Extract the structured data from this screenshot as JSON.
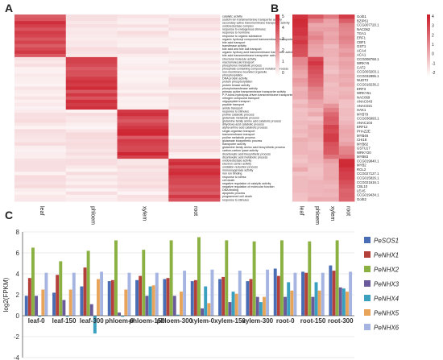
{
  "colors": {
    "heat_high": "#cc1f2c",
    "heat_low": "#ffffff",
    "series": [
      "#4a6eb5",
      "#b3403a",
      "#8bb143",
      "#6b5a9a",
      "#3aa0c0",
      "#e8a55a",
      "#a5b4e0"
    ]
  },
  "panel_a": {
    "letter": "A",
    "columns": [
      "leaf",
      "phloem",
      "xylem",
      "root"
    ],
    "scale_ticks": [
      "5",
      "4",
      "3",
      "2",
      "1",
      "0"
    ],
    "terms": [
      "catalytic activity",
      "sodium ion transmembrane transporter activity",
      "secondary active transmembrane transporter activity",
      "oxidoreductase complex",
      "response to endogenous stimulus",
      "response to hormone",
      "response to organic substance",
      "organic hydroxyl compound transmembrane transporter activity",
      "bile acid transport",
      "transferase activity",
      "bile acid and bile salt transport",
      "organic hydroxy acid transmembrane transporter activity",
      "bile acid transmembrane transporter activity",
      "structural molecule activity",
      "macromolecule transport",
      "phosphorus metabolic process",
      "phosphate-containing compound metabolic process",
      "non-membrane-bounded organelle",
      "phosphorylation",
      "DNA protein activity",
      "protein phosphorylation",
      "protein kinase activity",
      "phosphotransferase activity",
      "primary active transmembrane transporter activity",
      "P-P-bond-hydrolysis-driven transmembrane transporter activity",
      "nitrogen compound transport",
      "oligopeptide transport",
      "peptide transport",
      "amide transport",
      "response to stimulus",
      "proline catabolic process",
      "glutamate metabolic process",
      "glutamine family amino acid catabolic process",
      "dihydroxy acid catabolic process",
      "alpha-amino acid catabolic process",
      "single-organism transport",
      "transmembrane transport",
      "proline metabolic process",
      "glutamate biosynthetic process",
      "transporter activity",
      "glutamine family amino acid biosynthetic process",
      "carbon-carbon lyase activity",
      "dicarboxylic acid biosynthetic process",
      "dicarboxylic acid metabolic process",
      "oxidoreductase activity",
      "electron carrier activity",
      "oxidation-reduction process",
      "monooxygenase activity",
      "iron ion binding",
      "response to stress",
      "cell death",
      "negative regulation of catalytic activity",
      "negative regulation of molecular function",
      "DNA binding",
      "apoptotic process",
      "programmed cell death",
      "response to stimulus"
    ]
  },
  "panel_b": {
    "letter": "B",
    "columns": [
      "leaf",
      "phloem",
      "xylem",
      "root"
    ],
    "scale_ticks": [
      "4",
      "3",
      "2",
      "1",
      "0",
      "-1",
      "-2"
    ],
    "genes": [
      "GolS1",
      "BZIP61",
      "CCG007720.1",
      "NAC062",
      "TGA1",
      "ERF1",
      "CBF1",
      "GST1",
      "ACA4",
      "ACA1",
      "CCG008768.1",
      "WRKY6",
      "CAT2",
      "CCG003203.1",
      "CCG032895.1",
      "NUDT2",
      "CCG018236.2",
      "ERF3",
      "WRKY51",
      "NAC069",
      "ANAC043",
      "ANAC021",
      "HAK1",
      "MYB79",
      "CCG036993.1",
      "ANAC104",
      "ERF12",
      "PHAZ2E",
      "MYB46",
      "CHI18",
      "MYB82",
      "GSTU17",
      "WRKY20",
      "MYB83",
      "CCG019840.1",
      "MYB2",
      "RGL2",
      "CCG027127.1",
      "CCG015826.1",
      "CCG021616.1",
      "CBL10",
      "LEA5",
      "CCG019434.1",
      "GolS2"
    ]
  },
  "chart_data": [
    {
      "type": "heatmap",
      "panel": "A",
      "columns": [
        "leaf",
        "phloem",
        "xylem",
        "root"
      ],
      "value_range": [
        0,
        5
      ],
      "blocks": [
        {
          "column": "leaf",
          "rows": "catalytic activity through bile acid transmembrane transporter activity",
          "level": "high"
        },
        {
          "column": "phloem",
          "rows": "structural molecule activity through peptide transport",
          "level": "high"
        },
        {
          "column": "xylem",
          "rows": "response to stimulus through dicarboxylic acid metabolic process",
          "level": "high"
        },
        {
          "column": "root",
          "rows": "oxidoreductase activity through response to stimulus",
          "level": "high"
        }
      ]
    },
    {
      "type": "heatmap",
      "panel": "B",
      "columns": [
        "leaf",
        "phloem",
        "xylem",
        "root"
      ],
      "value_range": [
        -2,
        4
      ],
      "rows": [
        "GolS1",
        "BZIP61",
        "CCG007720.1",
        "NAC062",
        "TGA1",
        "ERF1",
        "CBF1",
        "GST1",
        "ACA4",
        "ACA1",
        "CCG008768.1",
        "WRKY6",
        "CAT2",
        "CCG003203.1",
        "CCG032895.1",
        "NUDT2",
        "CCG018236.2",
        "ERF3",
        "WRKY51",
        "NAC069",
        "ANAC043",
        "ANAC021",
        "HAK1",
        "MYB79",
        "CCG036993.1",
        "ANAC104",
        "ERF12",
        "PHAZ2E",
        "MYB46",
        "CHI18",
        "MYB82",
        "GSTU17",
        "WRKY20",
        "MYB83",
        "CCG019840.1",
        "MYB2",
        "RGL2",
        "CCG027127.1",
        "CCG015826.1",
        "CCG021616.1",
        "CBL10",
        "LEA5",
        "CCG019434.1",
        "GolS2"
      ]
    },
    {
      "type": "bar",
      "panel": "C",
      "letter": "C",
      "ylabel": "log2(FPKM)",
      "ylim": [
        -4,
        8
      ],
      "yticks": [
        -4,
        -2,
        0,
        2,
        4,
        6,
        8
      ],
      "grid": true,
      "legend_position": "right",
      "categories": [
        "leaf-0",
        "leaf-150",
        "leaf-300",
        "phloem-0",
        "phloem-150",
        "phloem-300",
        "xylem-0",
        "xylem-150",
        "xylem-300",
        "root-0",
        "root-150",
        "root-300"
      ],
      "series": [
        {
          "name": "PeSOS1",
          "values": [
            1.9,
            2.2,
            2.8,
            3.3,
            3.4,
            3.5,
            3.3,
            3.5,
            3.3,
            4.5,
            4.2,
            4.8
          ]
        },
        {
          "name": "PeNHX1",
          "values": [
            3.6,
            3.9,
            4.6,
            3.4,
            3.8,
            3.6,
            3.4,
            3.7,
            3.5,
            3.8,
            4.1,
            4.3
          ]
        },
        {
          "name": "PeNHX2",
          "values": [
            6.5,
            5.2,
            6.2,
            7.2,
            6.3,
            7.2,
            7.5,
            7.2,
            7.1,
            7.2,
            7.1,
            7.2
          ]
        },
        {
          "name": "PeNHX3",
          "values": [
            1.9,
            1.5,
            1.1,
            0.3,
            1.9,
            1.9,
            0.7,
            1.3,
            1.8,
            1.8,
            1.8,
            2.7
          ]
        },
        {
          "name": "PeNHX4",
          "values": [
            -0.1,
            -0.1,
            -1.7,
            -0.1,
            2.8,
            0.1,
            2.8,
            2.3,
            1.3,
            3.2,
            3.2,
            2.6
          ]
        },
        {
          "name": "PeNHX5",
          "values": [
            2.5,
            2.5,
            3.5,
            2.5,
            2.9,
            2.3,
            1.2,
            2.1,
            1.8,
            2.4,
            2.4,
            2.3
          ]
        },
        {
          "name": "PeNHX6",
          "values": [
            4.1,
            4.1,
            4.2,
            4.1,
            4.1,
            4.3,
            4.4,
            4.3,
            4.4,
            4.1,
            4.1,
            4.2
          ]
        }
      ]
    }
  ]
}
